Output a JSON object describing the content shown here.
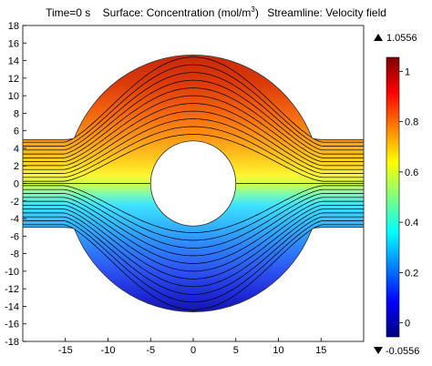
{
  "chart_data": {
    "type": "heatmap",
    "title_parts": {
      "time": "Time=0 s",
      "surface_prefix": "Surface: Concentration (mol/m",
      "surface_exp": "3",
      "surface_suffix": ")",
      "streamline": "Streamline: Velocity field"
    },
    "xlim": [
      -20,
      20
    ],
    "ylim": [
      -18,
      18
    ],
    "x_ticks": [
      -15,
      -10,
      -5,
      0,
      5,
      10,
      15
    ],
    "y_ticks": [
      -18,
      -16,
      -14,
      -12,
      -10,
      -8,
      -6,
      -4,
      -2,
      0,
      2,
      4,
      6,
      8,
      10,
      12,
      14,
      16,
      18
    ],
    "geometry": {
      "outer_radius": 15,
      "inner_radius": 5,
      "channel_half_width": 5,
      "corner_radius": 1.5
    },
    "color_range": {
      "max_label": "1.0556",
      "min_label": "-0.0556",
      "max_icon": "triangle-up-icon",
      "min_icon": "triangle-down-icon",
      "ticks": [
        1,
        0.8,
        0.6,
        0.4,
        0.2,
        0
      ],
      "min": -0.0556,
      "max": 1.0556,
      "colormap": "jet"
    },
    "streamlines": {
      "count_per_half": 11,
      "color": "#000000"
    }
  }
}
